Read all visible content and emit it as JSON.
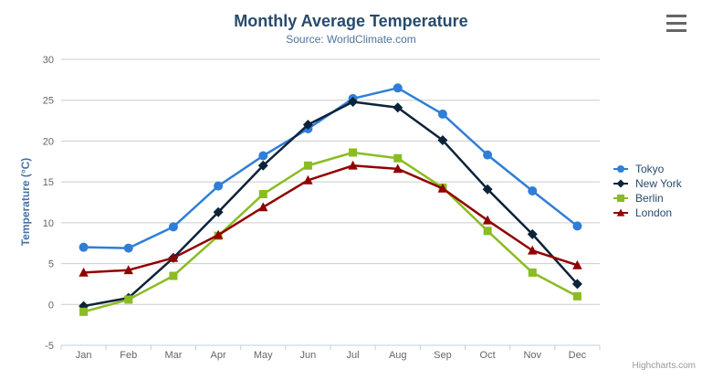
{
  "chart_data": {
    "type": "line",
    "title": "Monthly Average Temperature",
    "subtitle": "Source: WorldClimate.com",
    "xlabel": "",
    "ylabel": "Temperature (°C)",
    "categories": [
      "Jan",
      "Feb",
      "Mar",
      "Apr",
      "May",
      "Jun",
      "Jul",
      "Aug",
      "Sep",
      "Oct",
      "Nov",
      "Dec"
    ],
    "ylim": [
      -5,
      30
    ],
    "ytick_step": 5,
    "grid": true,
    "legend_position": "right",
    "series": [
      {
        "name": "Tokyo",
        "color": "#2f7ed8",
        "marker": "circle",
        "values": [
          7.0,
          6.9,
          9.5,
          14.5,
          18.2,
          21.5,
          25.2,
          26.5,
          23.3,
          18.3,
          13.9,
          9.6
        ]
      },
      {
        "name": "New York",
        "color": "#0d233a",
        "marker": "diamond",
        "values": [
          -0.2,
          0.8,
          5.7,
          11.3,
          17.0,
          22.0,
          24.8,
          24.1,
          20.1,
          14.1,
          8.6,
          2.5
        ]
      },
      {
        "name": "Berlin",
        "color": "#8bbc21",
        "marker": "square",
        "values": [
          -0.9,
          0.6,
          3.5,
          8.4,
          13.5,
          17.0,
          18.6,
          17.9,
          14.3,
          9.0,
          3.9,
          1.0
        ]
      },
      {
        "name": "London",
        "color": "#910000",
        "marker": "triangle",
        "values": [
          3.9,
          4.2,
          5.7,
          8.5,
          11.9,
          15.2,
          17.0,
          16.6,
          14.2,
          10.3,
          6.6,
          4.8
        ]
      }
    ],
    "credits": "Highcharts.com"
  },
  "icons": {
    "export_menu": "hamburger-icon"
  },
  "colors": {
    "title": "#274b6d",
    "subtitle": "#4d759e",
    "axis_label": "#666666",
    "axis_title": "#4572a7",
    "grid": "#cccccc",
    "axis_line": "#c0d0e0",
    "legend_text": "#274b6d",
    "credits": "#999999",
    "menu_icon": "#666666"
  }
}
